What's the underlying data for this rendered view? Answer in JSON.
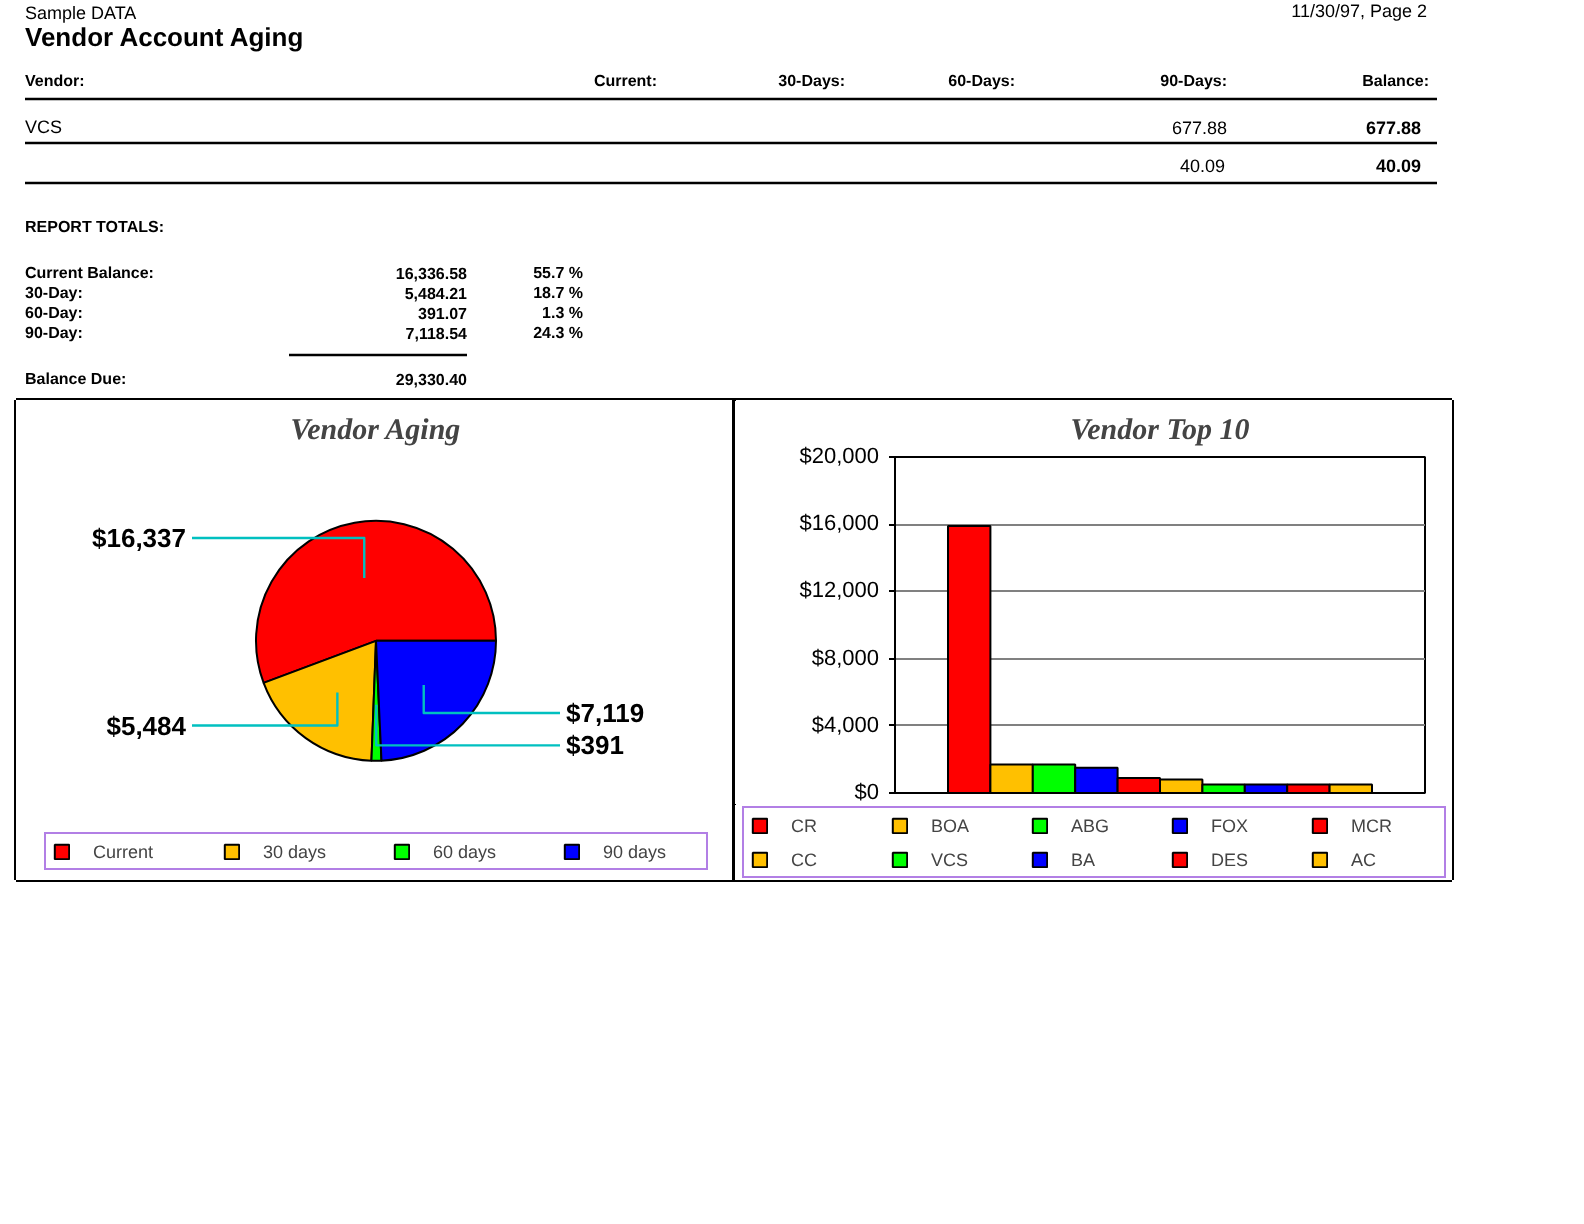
{
  "chart_data": [
    {
      "type": "other",
      "title": "Vendor Account Aging",
      "subtitle": "Sample DATA",
      "annotations": [
        "11/30/97, Page 2",
        "Vendor:",
        "Current:",
        "30-Days:",
        "60-Days:",
        "90-Days:",
        "Balance:",
        "VCS",
        "677.88",
        "677.88",
        "40.09",
        "40.09",
        "REPORT TOTALS:",
        "Current Balance:",
        "16,336.58",
        "55.7 %",
        "30-Day:",
        "5,484.21",
        "18.7 %",
        "60-Day:",
        "391.07",
        "1.3 %",
        "90-Day:",
        "7,118.54",
        "24.3 %",
        "Balance Due:",
        "29,330.40"
      ]
    },
    {
      "type": "pie",
      "title": "Vendor Aging",
      "categories": [
        "Current",
        "30 days",
        "60 days",
        "90 days"
      ],
      "values": [
        16337,
        5484,
        391,
        7119
      ],
      "colors": [
        "#ff0000",
        "#ffc000",
        "#00ff00",
        "#0000ff"
      ],
      "value_labels": [
        "$16,337",
        "$5,484",
        "$391",
        "$7,119"
      ],
      "legend": "bottom"
    },
    {
      "type": "bar",
      "title": "Vendor Top 10",
      "categories": [
        null
      ],
      "series": [
        {
          "name": "CR",
          "color": "#ff0000",
          "values": [
            15900
          ]
        },
        {
          "name": "BOA",
          "color": "#ffc000",
          "values": [
            1700
          ]
        },
        {
          "name": "ABG",
          "color": "#00ff00",
          "values": [
            1700
          ]
        },
        {
          "name": "FOX",
          "color": "#0000ff",
          "values": [
            1500
          ]
        },
        {
          "name": "MCR",
          "color": "#ff0000",
          "values": [
            900
          ]
        },
        {
          "name": "CC",
          "color": "#ffc000",
          "values": [
            800
          ]
        },
        {
          "name": "VCS",
          "color": "#00ff00",
          "values": [
            500
          ]
        },
        {
          "name": "BA",
          "color": "#0000ff",
          "values": [
            500
          ]
        },
        {
          "name": "DES",
          "color": "#ff0000",
          "values": [
            500
          ]
        },
        {
          "name": "AC",
          "color": "#ffc000",
          "values": [
            500
          ]
        }
      ],
      "ylim": [
        0,
        20000
      ],
      "yticks": [
        {
          "value": 0,
          "label": "$0"
        },
        {
          "value": 4000,
          "label": "$4,000"
        },
        {
          "value": 8000,
          "label": "$8,000"
        },
        {
          "value": 12000,
          "label": "$12,000"
        },
        {
          "value": 16000,
          "label": "$16,000"
        },
        {
          "value": 20000,
          "label": "$20,000"
        }
      ],
      "grid": "y",
      "legend": "bottom"
    }
  ]
}
